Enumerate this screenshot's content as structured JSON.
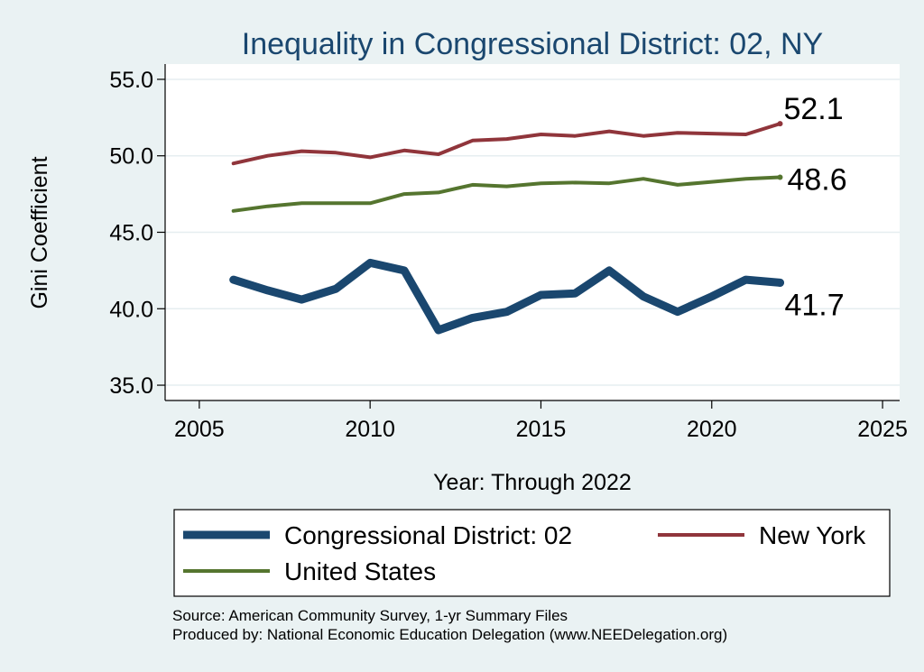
{
  "chart_data": {
    "type": "line",
    "title": "Inequality in Congressional District:  02, NY",
    "xlabel": "Year: Through 2022",
    "ylabel": "Gini Coefficient",
    "xlim": [
      2004,
      2025.5
    ],
    "ylim": [
      34,
      56
    ],
    "x_ticks": [
      2005,
      2010,
      2015,
      2020,
      2025
    ],
    "y_ticks": [
      35.0,
      40.0,
      45.0,
      50.0,
      55.0
    ],
    "y_tick_labels": [
      "35.0",
      "40.0",
      "45.0",
      "50.0",
      "55.0"
    ],
    "x": [
      2006,
      2007,
      2008,
      2009,
      2010,
      2011,
      2012,
      2013,
      2014,
      2015,
      2016,
      2017,
      2018,
      2019,
      2020,
      2021,
      2022
    ],
    "series": [
      {
        "name": "Congressional District:  02",
        "color": "#1a476f",
        "values": [
          41.9,
          41.2,
          40.6,
          41.3,
          43.0,
          42.5,
          38.6,
          39.4,
          39.8,
          40.9,
          41.0,
          42.5,
          40.8,
          39.8,
          40.8,
          41.9,
          41.7
        ],
        "end_label": "41.7"
      },
      {
        "name": "New York",
        "color": "#90353b",
        "values": [
          49.5,
          50.0,
          50.3,
          50.2,
          49.9,
          50.35,
          50.1,
          51.0,
          51.1,
          51.4,
          51.3,
          51.6,
          51.3,
          51.5,
          51.45,
          51.4,
          52.1
        ],
        "end_label": "52.1"
      },
      {
        "name": "United States",
        "color": "#55752f",
        "values": [
          46.4,
          46.7,
          46.9,
          46.9,
          46.9,
          47.5,
          47.6,
          48.1,
          48.0,
          48.2,
          48.25,
          48.2,
          48.5,
          48.1,
          48.3,
          48.5,
          48.6
        ],
        "end_label": "48.6"
      }
    ]
  },
  "legend": {
    "items": [
      {
        "label": "Congressional District:  02",
        "color": "#1a476f"
      },
      {
        "label": "New York",
        "color": "#90353b"
      },
      {
        "label": "United States",
        "color": "#55752f"
      }
    ]
  },
  "footer": {
    "source": "Source: American Community Survey, 1-yr Summary Files",
    "produced": "Produced by: National Economic Education Delegation (www.NEEDelegation.org)"
  }
}
